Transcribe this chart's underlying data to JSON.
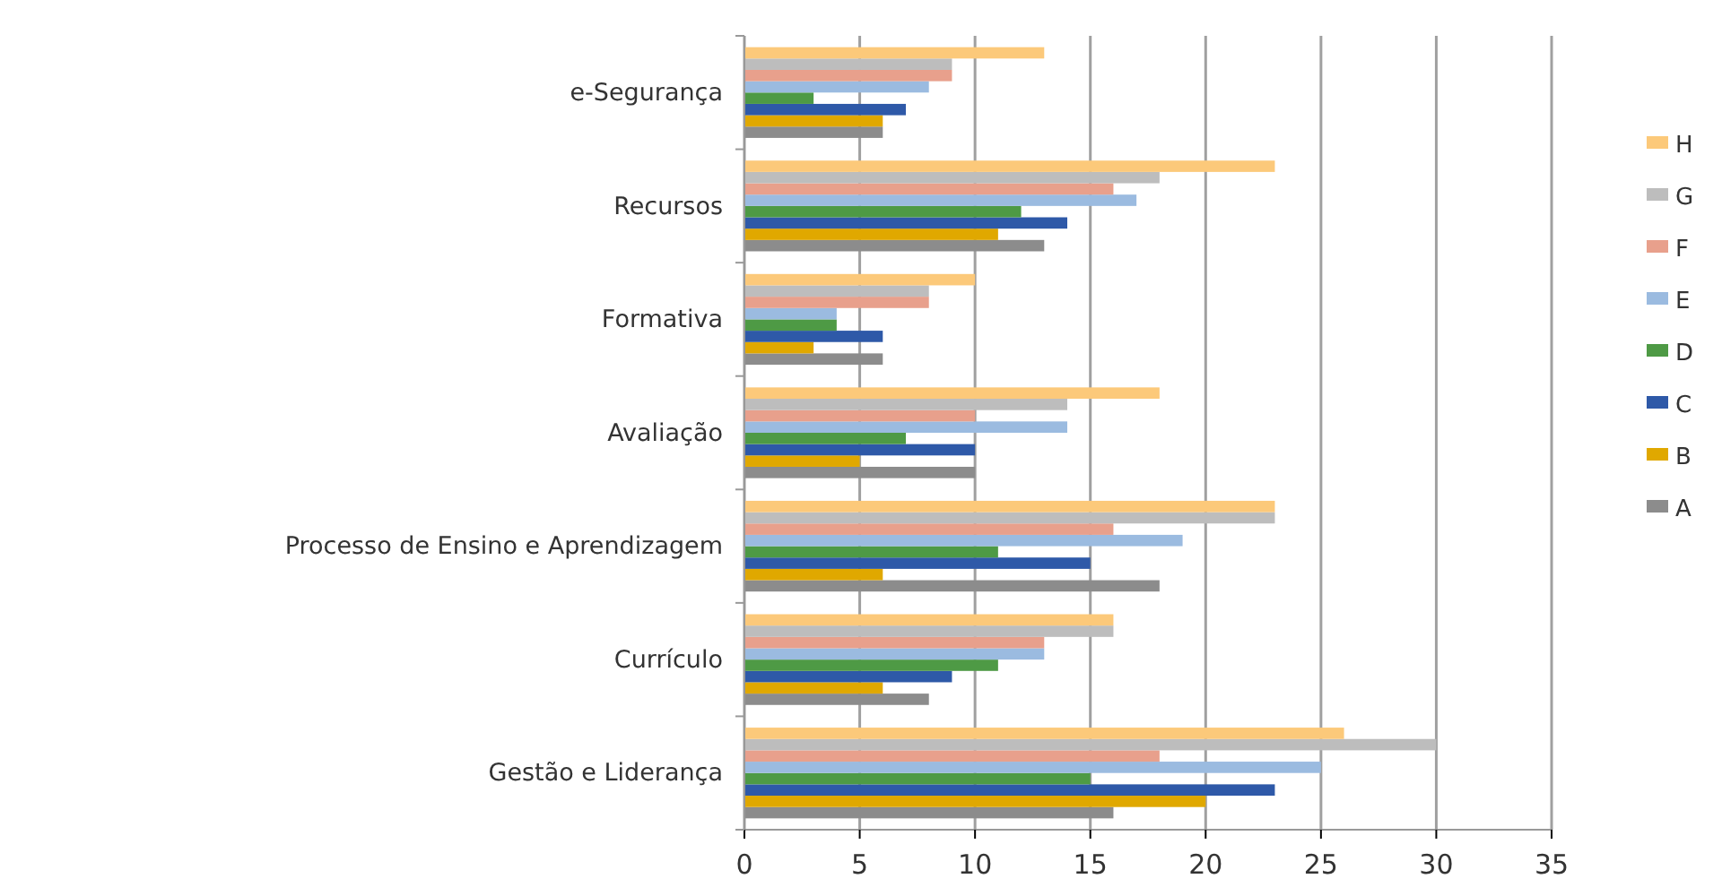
{
  "chart_data": {
    "type": "bar",
    "orientation": "horizontal",
    "categories": [
      "e-Segurança",
      "Recursos",
      "Formativa",
      "Avaliação",
      "Processo de Ensino e Aprendizagem",
      "Currículo",
      "Gestão e Liderança"
    ],
    "series": [
      {
        "name": "A",
        "color": "#8c8c8c",
        "values": [
          6,
          13,
          6,
          10,
          18,
          8,
          16
        ]
      },
      {
        "name": "B",
        "color": "#e0a800",
        "values": [
          6,
          11,
          3,
          5,
          6,
          6,
          20
        ]
      },
      {
        "name": "C",
        "color": "#2e59a8",
        "values": [
          7,
          14,
          6,
          10,
          15,
          9,
          23
        ]
      },
      {
        "name": "D",
        "color": "#4e9a45",
        "values": [
          3,
          12,
          4,
          7,
          11,
          11,
          15
        ]
      },
      {
        "name": "E",
        "color": "#9bbbe0",
        "values": [
          8,
          17,
          4,
          14,
          19,
          13,
          25
        ]
      },
      {
        "name": "F",
        "color": "#e8a08c",
        "values": [
          9,
          16,
          8,
          10,
          16,
          13,
          18
        ]
      },
      {
        "name": "G",
        "color": "#bdbdbd",
        "values": [
          9,
          18,
          8,
          14,
          23,
          16,
          30
        ]
      },
      {
        "name": "H",
        "color": "#fcc97a",
        "values": [
          13,
          23,
          10,
          18,
          23,
          16,
          26
        ]
      }
    ],
    "xlim": [
      0,
      35
    ],
    "xticks": [
      0,
      5,
      10,
      15,
      20,
      25,
      30,
      35
    ],
    "grid": "x",
    "legend": "right"
  }
}
